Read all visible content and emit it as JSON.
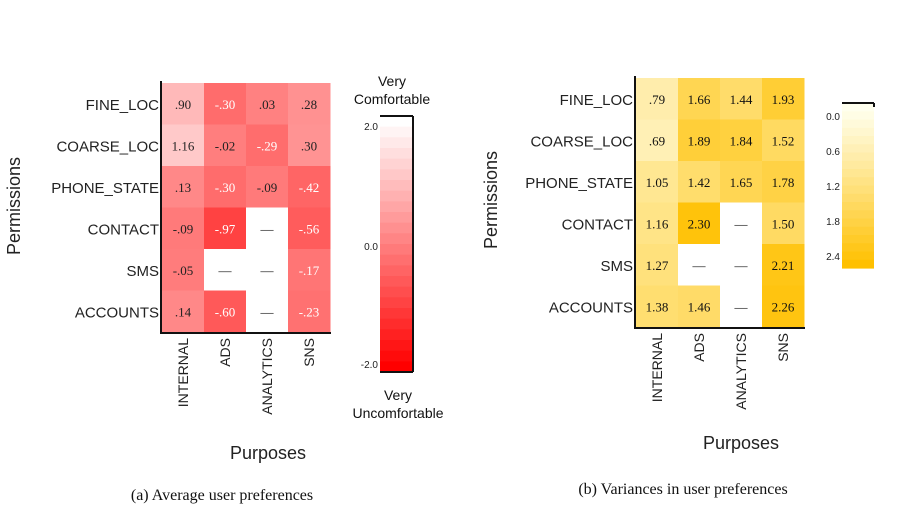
{
  "chart_data": [
    {
      "type": "heatmap",
      "rows": [
        "FINE_LOC",
        "COARSE_LOC",
        "PHONE_STATE",
        "CONTACT",
        "SMS",
        "ACCOUNTS"
      ],
      "columns": [
        "INTERNAL",
        "ADS",
        "ANALYTICS",
        "SNS"
      ],
      "values": [
        [
          0.9,
          -0.3,
          0.03,
          0.28
        ],
        [
          1.16,
          -0.02,
          -0.29,
          0.3
        ],
        [
          0.13,
          -0.3,
          -0.09,
          -0.42
        ],
        [
          -0.09,
          -0.97,
          null,
          -0.56
        ],
        [
          -0.05,
          null,
          null,
          -0.17
        ],
        [
          0.14,
          -0.6,
          null,
          -0.23
        ]
      ],
      "cell_labels": [
        [
          ".90",
          "-.30",
          ".03",
          ".28"
        ],
        [
          "1.16",
          "-.02",
          "-.29",
          ".30"
        ],
        [
          ".13",
          "-.30",
          "-.09",
          "-.42"
        ],
        [
          "-.09",
          "-.97",
          "—",
          "-.56"
        ],
        [
          "-.05",
          "—",
          "—",
          "-.17"
        ],
        [
          ".14",
          "-.60",
          "—",
          "-.23"
        ]
      ],
      "xlabel": "Purposes",
      "ylabel": "Permissions",
      "caption": "(a)   Average user preferences",
      "colorbar": {
        "ticks": [
          "2.0",
          "0.0",
          "-2.0"
        ],
        "range": [
          -2.0,
          2.0
        ],
        "top_label": [
          "Very",
          "Comfortable"
        ],
        "bottom_label": [
          "Very",
          "Uncomfortable"
        ],
        "low_color": "#ff0000",
        "high_color": "#ffffff"
      }
    },
    {
      "type": "heatmap",
      "rows": [
        "FINE_LOC",
        "COARSE_LOC",
        "PHONE_STATE",
        "CONTACT",
        "SMS",
        "ACCOUNTS"
      ],
      "columns": [
        "INTERNAL",
        "ADS",
        "ANALYTICS",
        "SNS"
      ],
      "values": [
        [
          0.79,
          1.66,
          1.44,
          1.93
        ],
        [
          0.69,
          1.89,
          1.84,
          1.52
        ],
        [
          1.05,
          1.42,
          1.65,
          1.78
        ],
        [
          1.16,
          2.3,
          null,
          1.5
        ],
        [
          1.27,
          null,
          null,
          2.21
        ],
        [
          1.38,
          1.46,
          null,
          2.26
        ]
      ],
      "cell_labels": [
        [
          ".79",
          "1.66",
          "1.44",
          "1.93"
        ],
        [
          ".69",
          "1.89",
          "1.84",
          "1.52"
        ],
        [
          "1.05",
          "1.42",
          "1.65",
          "1.78"
        ],
        [
          "1.16",
          "2.30",
          "—",
          "1.50"
        ],
        [
          "1.27",
          "—",
          "—",
          "2.21"
        ],
        [
          "1.38",
          "1.46",
          "—",
          "2.26"
        ]
      ],
      "xlabel": "Purposes",
      "ylabel": "Permissions",
      "caption": "(b) Variances in user preferences",
      "colorbar": {
        "ticks": [
          "0.0",
          "0.6",
          "1.2",
          "1.8",
          "2.4"
        ],
        "range": [
          0.0,
          2.4
        ],
        "low_color": "#ffffee",
        "high_color": "#ffc000"
      }
    }
  ]
}
